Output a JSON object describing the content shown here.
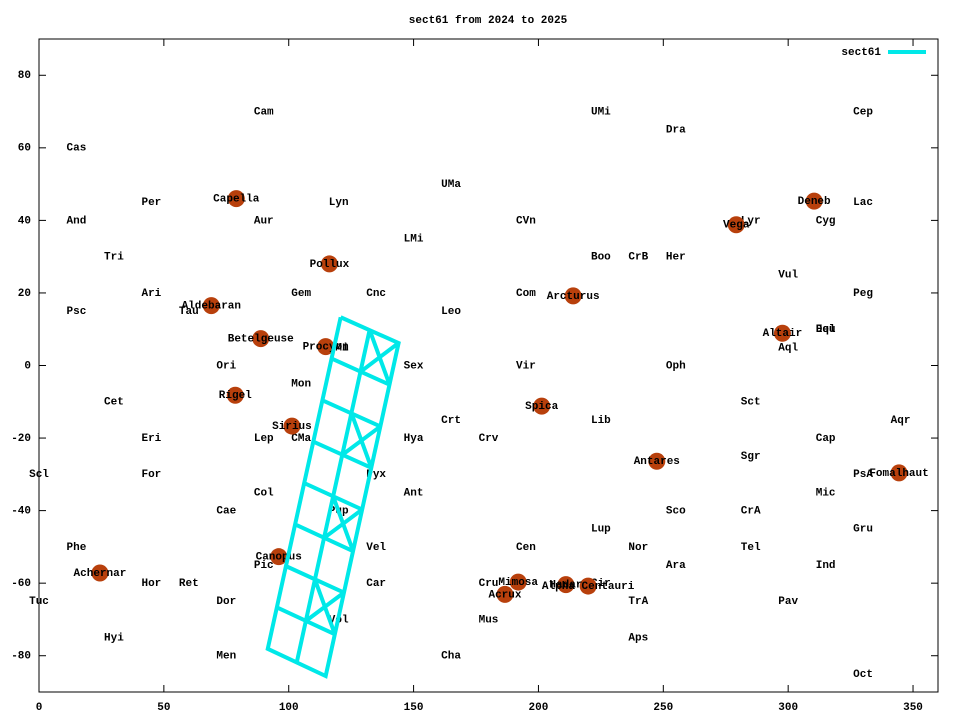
{
  "chart_data": {
    "type": "scatter",
    "title": "sect61 from 2024 to 2025",
    "xlim": [
      0,
      360
    ],
    "ylim": [
      -90,
      90
    ],
    "xticks": [
      0,
      50,
      100,
      150,
      200,
      250,
      300,
      350
    ],
    "yticks": [
      -80,
      -60,
      -40,
      -20,
      0,
      20,
      40,
      60,
      80
    ],
    "legend": "top-right",
    "series": [
      {
        "name": "sect61",
        "type": "line",
        "color": "#00e8e8",
        "x": [
          120.8,
          144,
          114.8,
          91.6,
          120.8,
          null,
          132.4,
          103.2,
          null,
          117.2,
          140.4,
          null,
          113.5,
          136.7,
          null,
          109.9,
          133.1,
          null,
          106.2,
          129.4,
          null,
          102.6,
          125.8,
          null,
          98.9,
          122.1,
          null,
          95.3,
          118.5,
          null,
          132.4,
          140.4,
          null,
          144,
          128.8,
          null,
          125.1,
          133.1,
          null,
          136.7,
          121.5,
          null,
          117.8,
          125.8,
          null,
          129.4,
          114.2,
          null,
          110.5,
          118.5,
          null,
          122.1,
          106.9
        ],
        "y": [
          13.3,
          6.2,
          -85.6,
          -78.1,
          13.3,
          null,
          9.8,
          -81.9,
          null,
          1.9,
          -5.3,
          null,
          -9.6,
          -16.8,
          null,
          -21,
          -28.2,
          null,
          -32.4,
          -39.7,
          null,
          -43.8,
          -51.2,
          null,
          -55.3,
          -62.6,
          null,
          -66.7,
          -74.1,
          null,
          9.8,
          -5.3,
          null,
          6.2,
          -1.7,
          null,
          -13.1,
          -28.2,
          null,
          -16.8,
          -24.6,
          null,
          -36.1,
          -51.2,
          null,
          -39.7,
          -47.5,
          null,
          -59,
          -74.1,
          null,
          -62.6,
          -70.4
        ]
      }
    ],
    "stars": {
      "color": "#b8400c",
      "names": [
        "Capella",
        "Aldebaran",
        "Betelgeuse",
        "Rigel",
        "Pollux",
        "Procyon",
        "Sirius",
        "Canopus",
        "Achernar",
        "Arcturus",
        "Spica",
        "Antares",
        "Vega",
        "Deneb",
        "Altair",
        "Fomalhaut",
        "Mimosa",
        "Acrux",
        "Hadar",
        "Alpha Centauri"
      ],
      "x": [
        79,
        69,
        88.8,
        78.6,
        116.3,
        114.8,
        101.3,
        96,
        24.4,
        213.9,
        201.3,
        247.4,
        279.2,
        310.4,
        297.7,
        344.4,
        191.9,
        186.6,
        211,
        219.9
      ],
      "y": [
        46,
        16.5,
        7.4,
        -8.2,
        28,
        5.2,
        -16.7,
        -52.7,
        -57.2,
        19.2,
        -11.2,
        -26.4,
        38.8,
        45.3,
        8.9,
        -29.6,
        -59.7,
        -63.1,
        -60.4,
        -60.8
      ]
    },
    "labels": {
      "texts": [
        "Cam",
        "UMi",
        "Cep",
        "Dra",
        "Cas",
        "UMa",
        "Per",
        "Lyn",
        "Lac",
        "And",
        "Aur",
        "CVn",
        "Lyr",
        "Cyg",
        "LMi",
        "Tri",
        "Boo",
        "CrB",
        "Her",
        "Vul",
        "Ari",
        "Gem",
        "Cnc",
        "Com",
        "Peg",
        "Psc",
        "Tau",
        "Leo",
        "CMi",
        "Del",
        "Equ",
        "Aql",
        "Ori",
        "Mon",
        "Sex",
        "Vir",
        "Oph",
        "Cet",
        "Sct",
        "Crt",
        "Lib",
        "Aqr",
        "Eri",
        "Lep",
        "CMa",
        "Hya",
        "Crv",
        "Cap",
        "Sgr",
        "Scl",
        "For",
        "Pyx",
        "PsA",
        "Col",
        "Ant",
        "Mic",
        "Cae",
        "Pup",
        "Sco",
        "CrA",
        "Lup",
        "Gru",
        "Phe",
        "Vel",
        "Cen",
        "Nor",
        "Tel",
        "Pic",
        "Ara",
        "Ind",
        "Hor",
        "Ret",
        "Car",
        "Cru",
        "Cir",
        "Tuc",
        "Dor",
        "TrA",
        "Pav",
        "Vol",
        "Mus",
        "Hyi",
        "Aps",
        "Men",
        "Cha",
        "Oct"
      ],
      "x": [
        90,
        225,
        330,
        255,
        15,
        165,
        45,
        120,
        330,
        15,
        90,
        195,
        285,
        315,
        150,
        30,
        225,
        240,
        255,
        300,
        45,
        105,
        135,
        195,
        330,
        15,
        60,
        165,
        120,
        315,
        315,
        300,
        75,
        105,
        150,
        195,
        255,
        30,
        285,
        165,
        225,
        345,
        45,
        90,
        105,
        150,
        180,
        315,
        285,
        0,
        45,
        135,
        330,
        90,
        150,
        315,
        75,
        120,
        255,
        285,
        225,
        330,
        15,
        135,
        195,
        240,
        285,
        90,
        255,
        315,
        45,
        60,
        135,
        180,
        225,
        0,
        75,
        240,
        300,
        120,
        180,
        30,
        240,
        75,
        165,
        330
      ],
      "y": [
        70,
        70,
        70,
        65,
        60,
        50,
        45,
        45,
        45,
        40,
        40,
        40,
        40,
        40,
        35,
        30,
        30,
        30,
        30,
        25,
        20,
        20,
        20,
        20,
        20,
        15,
        15,
        15,
        5,
        10,
        10,
        5,
        0,
        -5,
        0,
        0,
        0,
        -10,
        -10,
        -15,
        -15,
        -15,
        -20,
        -20,
        -20,
        -20,
        -20,
        -20,
        -25,
        -30,
        -30,
        -30,
        -30,
        -35,
        -35,
        -35,
        -40,
        -40,
        -40,
        -40,
        -45,
        -45,
        -50,
        -50,
        -50,
        -50,
        -50,
        -55,
        -55,
        -55,
        -60,
        -60,
        -60,
        -60,
        -60,
        -65,
        -65,
        -65,
        -65,
        -70,
        -70,
        -75,
        -75,
        -80,
        -80,
        -85
      ]
    }
  }
}
